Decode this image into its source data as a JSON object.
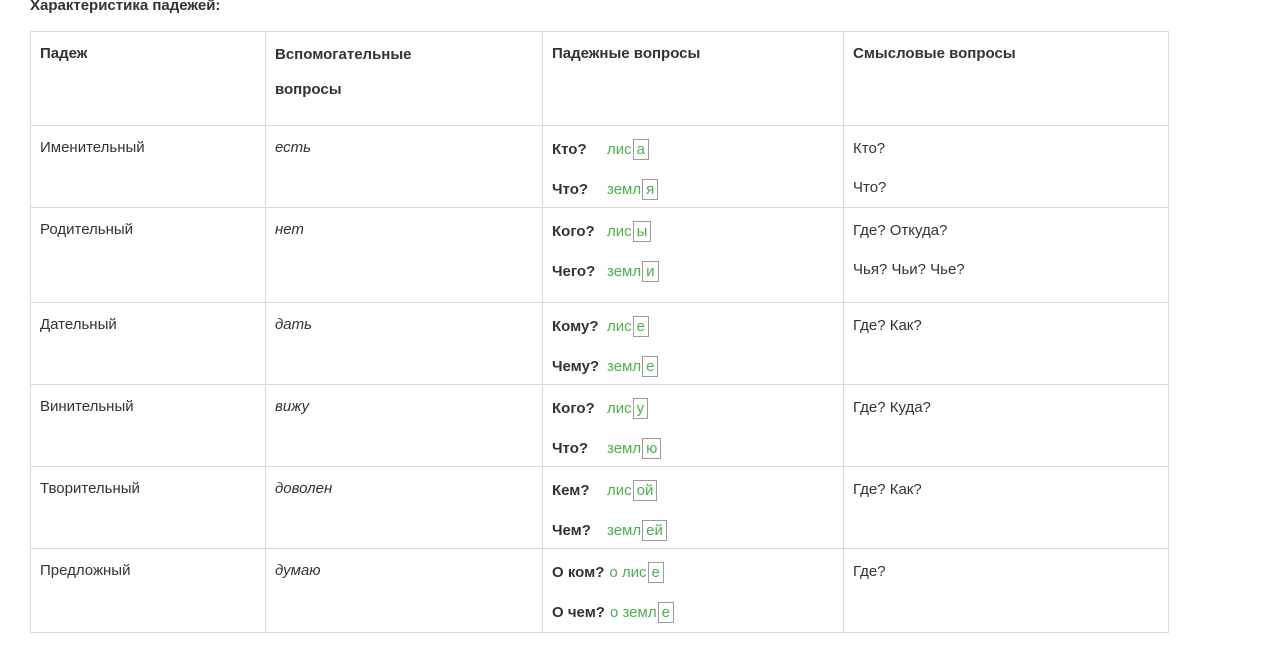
{
  "title": "Характеристика падежей:",
  "colors": {
    "accent_green": "#4caf50",
    "text": "#333333",
    "table_border": "#d8d8d8",
    "ending_box_border": "#9b9b9b"
  },
  "table": {
    "headers": [
      "Падеж",
      "Вспомогательные вопросы",
      "Падежные вопросы",
      "Смысловые вопросы"
    ],
    "aux_header_lines": [
      "Вспомогательные",
      "вопросы"
    ],
    "rows": [
      {
        "case": "Именительный",
        "aux": "есть",
        "lines": [
          {
            "q": "Кто?",
            "stem": "лис",
            "end": "а"
          },
          {
            "q": "Что?",
            "stem": "земл",
            "end": "я"
          }
        ],
        "sem": [
          "Кто?",
          "Что?"
        ]
      },
      {
        "case": "Родительный",
        "aux": "нет",
        "lines": [
          {
            "q": "Кого?",
            "stem": "лис",
            "end": "ы"
          },
          {
            "q": "Чего?",
            "stem": "земл",
            "end": "и"
          }
        ],
        "sem": [
          "Где? Откуда?",
          "Чья? Чьи? Чье?"
        ]
      },
      {
        "case": "Дательный",
        "aux": "дать",
        "lines": [
          {
            "q": "Кому?",
            "stem": "лис",
            "end": "е"
          },
          {
            "q": "Чему?",
            "stem": "земл",
            "end": "е"
          }
        ],
        "sem": [
          "Где? Как?"
        ]
      },
      {
        "case": "Винительный",
        "aux": "вижу",
        "lines": [
          {
            "q": "Кого?",
            "stem": "лис",
            "end": "у"
          },
          {
            "q": "Что?",
            "stem": "земл",
            "end": "ю"
          }
        ],
        "sem": [
          "Где? Куда?"
        ]
      },
      {
        "case": "Творительный",
        "aux": "доволен",
        "lines": [
          {
            "q": "Кем?",
            "stem": "лис",
            "end": "ой"
          },
          {
            "q": "Чем?",
            "stem": "земл",
            "end": "ей"
          }
        ],
        "sem": [
          "Где? Как?"
        ]
      },
      {
        "case": "Предложный",
        "aux": "думаю",
        "lines": [
          {
            "q": "О ком?",
            "stem": "о лис",
            "end": "е"
          },
          {
            "q": "О чем?",
            "stem": "о земл",
            "end": "е"
          }
        ],
        "sem": [
          "Где?"
        ]
      }
    ]
  }
}
